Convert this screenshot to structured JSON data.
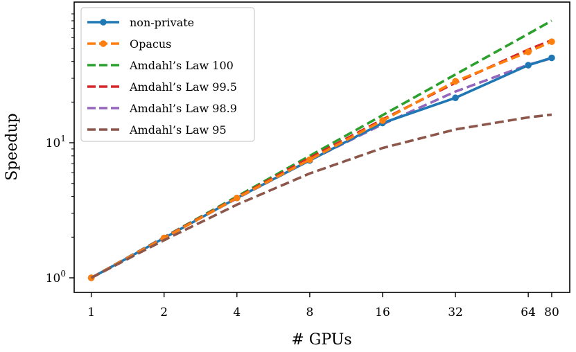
{
  "chart_data": {
    "type": "line",
    "xscale": "log2",
    "yscale": "log10",
    "xlabel": "# GPUs",
    "ylabel": "Speedup",
    "x_ticks": [
      1,
      2,
      4,
      8,
      16,
      32,
      64,
      80
    ],
    "x_tick_labels": [
      "1",
      "2",
      "4",
      "8",
      "16",
      "32",
      "64",
      "80"
    ],
    "y_tick_labels": [
      {
        "value": 1,
        "base": "10",
        "exp": "0"
      },
      {
        "value": 10,
        "base": "10",
        "exp": "1"
      }
    ],
    "xlim": [
      0.85,
      95
    ],
    "ylim": [
      0.78,
      110
    ],
    "legend_position": "top-left",
    "series": [
      {
        "name": "Amdahl's Law 100",
        "label": "Amdahl’s Law 100",
        "color": "#2ca02c",
        "style": "dashed",
        "marker": false,
        "x": [
          1,
          2,
          4,
          8,
          16,
          32,
          64,
          80
        ],
        "y": [
          1,
          2,
          4,
          8,
          16,
          32,
          64,
          80
        ]
      },
      {
        "name": "Amdahl's Law 99.5",
        "label": "Amdahl’s Law 99.5",
        "color": "#d62728",
        "style": "dashed",
        "marker": false,
        "x": [
          1,
          2,
          4,
          8,
          16,
          32,
          64,
          80
        ],
        "y": [
          1,
          1.99,
          3.94,
          7.72,
          14.88,
          27.8,
          48.9,
          57.4
        ]
      },
      {
        "name": "Amdahl's Law 98.9",
        "label": "Amdahl’s Law 98.9",
        "color": "#9467bd",
        "style": "dashed",
        "marker": false,
        "x": [
          1,
          2,
          4,
          8,
          16,
          32,
          64,
          80
        ],
        "y": [
          1,
          1.98,
          3.87,
          7.42,
          13.71,
          23.9,
          37.8,
          42.2
        ]
      },
      {
        "name": "non-private",
        "label": "non-private",
        "color": "#1f77b4",
        "style": "solid",
        "marker": true,
        "x": [
          1,
          2,
          4,
          8,
          16,
          32,
          64,
          80
        ],
        "y": [
          1,
          1.97,
          3.9,
          7.4,
          14.0,
          21.5,
          37.5,
          42.5
        ]
      },
      {
        "name": "Opacus",
        "label": "Opacus",
        "color": "#ff7f0e",
        "style": "dashed",
        "marker": true,
        "x": [
          1,
          2,
          4,
          8,
          16,
          32,
          64,
          80
        ],
        "y": [
          1,
          1.97,
          3.9,
          7.5,
          14.6,
          28.5,
          47.0,
          56.0
        ]
      },
      {
        "name": "Amdahl's Law 95",
        "label": "Amdahl’s Law 95",
        "color": "#8c564b",
        "style": "dashed",
        "marker": false,
        "x": [
          1,
          2,
          4,
          8,
          16,
          32,
          64,
          80
        ],
        "y": [
          1,
          1.9,
          3.48,
          5.93,
          9.14,
          12.55,
          15.42,
          16.16
        ]
      }
    ],
    "legend_order": [
      "non-private",
      "Opacus",
      "Amdahl's Law 100",
      "Amdahl's Law 99.5",
      "Amdahl's Law 98.9",
      "Amdahl's Law 95"
    ]
  }
}
